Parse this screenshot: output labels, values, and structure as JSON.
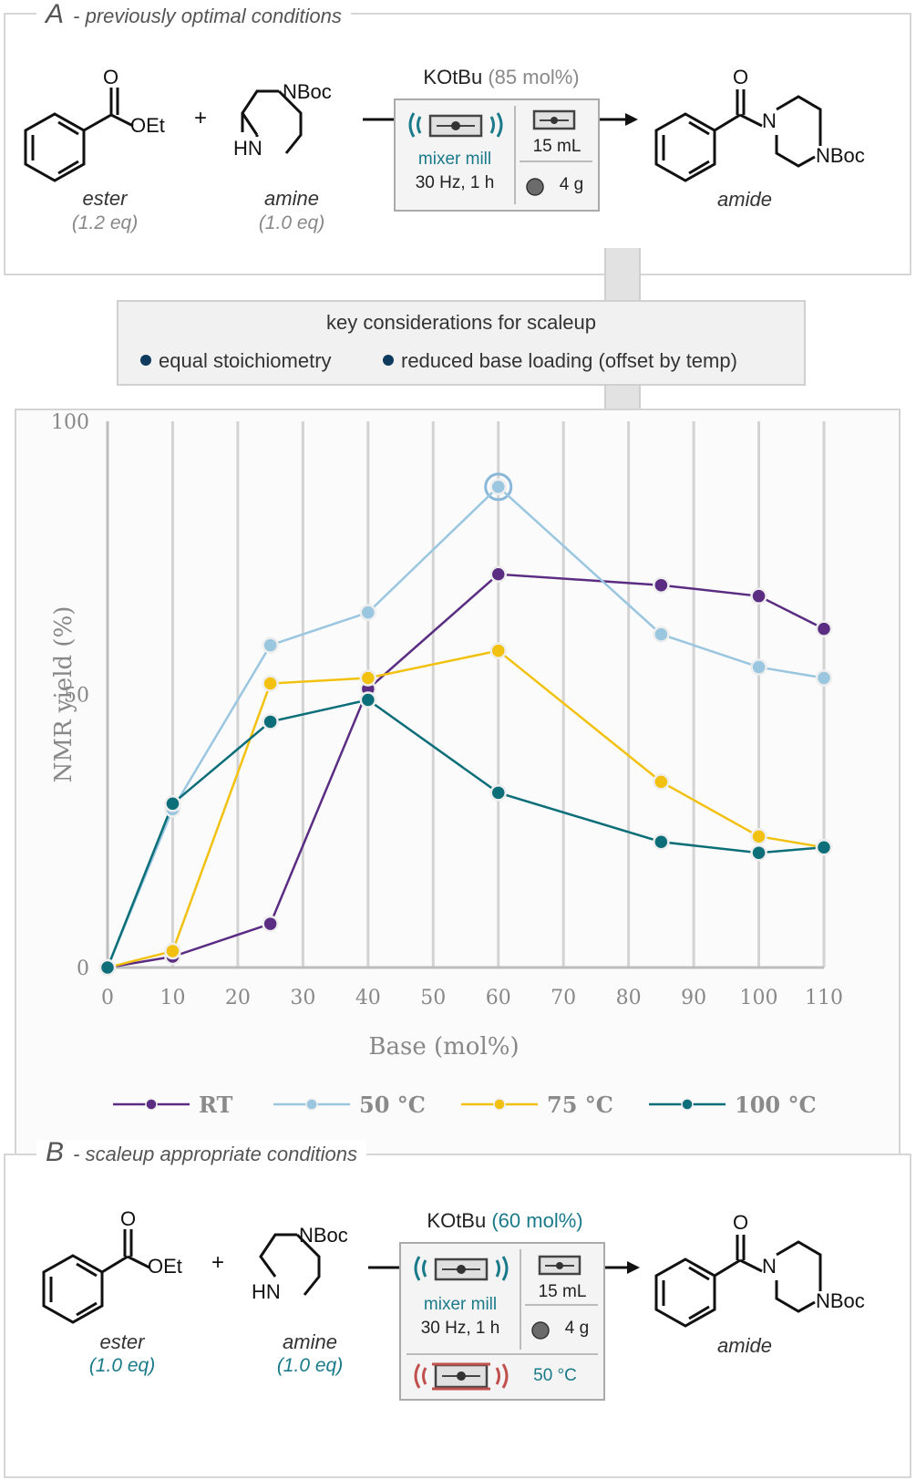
{
  "panel_a": {
    "letter": "A",
    "title": "- previously optimal conditions",
    "ester_label": "ester",
    "ester_eq": "(1.2 eq)",
    "amine_label": "amine",
    "amine_eq": "(1.0 eq)",
    "amide_label": "amide",
    "reagent_name": "KOtBu",
    "reagent_loading": "(85 mol%)",
    "mill_label": "mixer mill",
    "mill_settings": "30 Hz, 1 h",
    "jar_volume": "15 mL",
    "ball_mass": "4 g",
    "ester_group": "OEt",
    "amine_group": "NBoc",
    "amine_nh": "HN",
    "amide_n": "N",
    "amide_group": "NBoc",
    "carbonyl_o": "O"
  },
  "key_considerations": {
    "title": "key considerations for scaleup",
    "items": [
      "equal stoichiometry",
      "reduced base loading (offset by temp)"
    ]
  },
  "panel_b": {
    "letter": "B",
    "title": "- scaleup appropriate conditions",
    "ester_label": "ester",
    "ester_eq": "(1.0 eq)",
    "amine_label": "amine",
    "amine_eq": "(1.0 eq)",
    "amide_label": "amide",
    "reagent_name": "KOtBu",
    "reagent_loading": "(60 mol%)",
    "mill_label": "mixer mill",
    "mill_settings": "30 Hz, 1 h",
    "jar_volume": "15 mL",
    "ball_mass": "4 g",
    "temperature": "50 °C",
    "ester_group": "OEt",
    "amine_group": "NBoc",
    "amine_nh": "HN",
    "amide_n": "N",
    "amide_group": "NBoc",
    "carbonyl_o": "O"
  },
  "colors": {
    "rt": "#5b2d82",
    "c50": "#9ac6e0",
    "c75": "#f2c10f",
    "c100": "#0b6e78",
    "teal_text": "#1a7a8a",
    "heat": "#c0504d"
  },
  "chart_data": {
    "type": "line",
    "xlabel": "Base (mol%)",
    "ylabel": "NMR yield (%)",
    "xlim": [
      0,
      110
    ],
    "ylim": [
      0,
      100
    ],
    "xticks": [
      0,
      10,
      20,
      30,
      40,
      50,
      60,
      70,
      80,
      90,
      100,
      110
    ],
    "yticks": [
      0,
      50,
      100
    ],
    "grid": "vertical",
    "legend_position": "bottom",
    "highlight": {
      "series": "50 °C",
      "x": 60,
      "y": 88
    },
    "series": [
      {
        "name": "RT",
        "color": "#5b2d82",
        "x": [
          0,
          10,
          25,
          40,
          60,
          85,
          100,
          110
        ],
        "y": [
          0,
          2,
          8,
          51,
          72,
          70,
          68,
          62
        ]
      },
      {
        "name": "50 °C",
        "color": "#9ac6e0",
        "x": [
          0,
          10,
          25,
          40,
          60,
          85,
          100,
          110
        ],
        "y": [
          0,
          29,
          59,
          65,
          88,
          61,
          55,
          53
        ]
      },
      {
        "name": "75 °C",
        "color": "#f2c10f",
        "x": [
          0,
          10,
          25,
          40,
          60,
          85,
          100,
          110
        ],
        "y": [
          0,
          3,
          52,
          53,
          58,
          34,
          24,
          22
        ]
      },
      {
        "name": "100 °C",
        "color": "#0b6e78",
        "x": [
          0,
          10,
          25,
          40,
          60,
          85,
          100,
          110
        ],
        "y": [
          0,
          30,
          45,
          49,
          32,
          23,
          21,
          22
        ]
      }
    ]
  }
}
